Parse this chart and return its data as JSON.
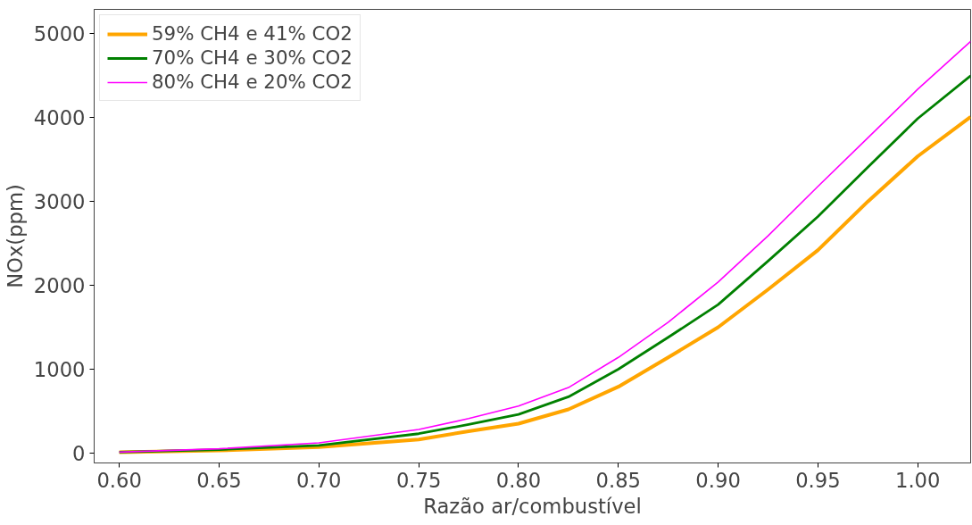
{
  "chart_data": {
    "type": "line",
    "xlabel": "Razão ar/combustível",
    "ylabel": "NOx(ppm)",
    "x": [
      0.6,
      0.65,
      0.7,
      0.75,
      0.775,
      0.8,
      0.825,
      0.85,
      0.875,
      0.9,
      0.925,
      0.95,
      0.975,
      1.0,
      1.0265
    ],
    "series": [
      {
        "name": "59% CH4 e 41% CO2",
        "color": "#ffa500",
        "values": [
          10,
          30,
          70,
          160,
          260,
          350,
          520,
          790,
          1140,
          1500,
          1950,
          2420,
          3000,
          3540,
          4010
        ]
      },
      {
        "name": "70% CH4 e 30% CO2",
        "color": "#008000",
        "values": [
          10,
          40,
          90,
          230,
          340,
          460,
          670,
          1000,
          1380,
          1770,
          2290,
          2820,
          3410,
          3990,
          4500
        ]
      },
      {
        "name": "80% CH4 e 20% CO2",
        "color": "#ff00ff",
        "values": [
          10,
          50,
          120,
          280,
          410,
          560,
          780,
          1140,
          1560,
          2040,
          2590,
          3180,
          3760,
          4340,
          4910
        ]
      }
    ],
    "xlim": [
      0.5874,
      1.0265
    ],
    "ylim": [
      -119,
      5292
    ],
    "xticks": [
      {
        "value": 0.6,
        "label": "0.60"
      },
      {
        "value": 0.65,
        "label": "0.65"
      },
      {
        "value": 0.7,
        "label": "0.70"
      },
      {
        "value": 0.75,
        "label": "0.75"
      },
      {
        "value": 0.8,
        "label": "0.80"
      },
      {
        "value": 0.85,
        "label": "0.85"
      },
      {
        "value": 0.9,
        "label": "0.90"
      },
      {
        "value": 0.95,
        "label": "0.95"
      },
      {
        "value": 1.0,
        "label": "1.00"
      }
    ],
    "yticks": [
      0,
      1000,
      2000,
      3000,
      4000,
      5000
    ],
    "legend": "top left",
    "grid": false,
    "line_style": "solid",
    "marker": "none"
  }
}
